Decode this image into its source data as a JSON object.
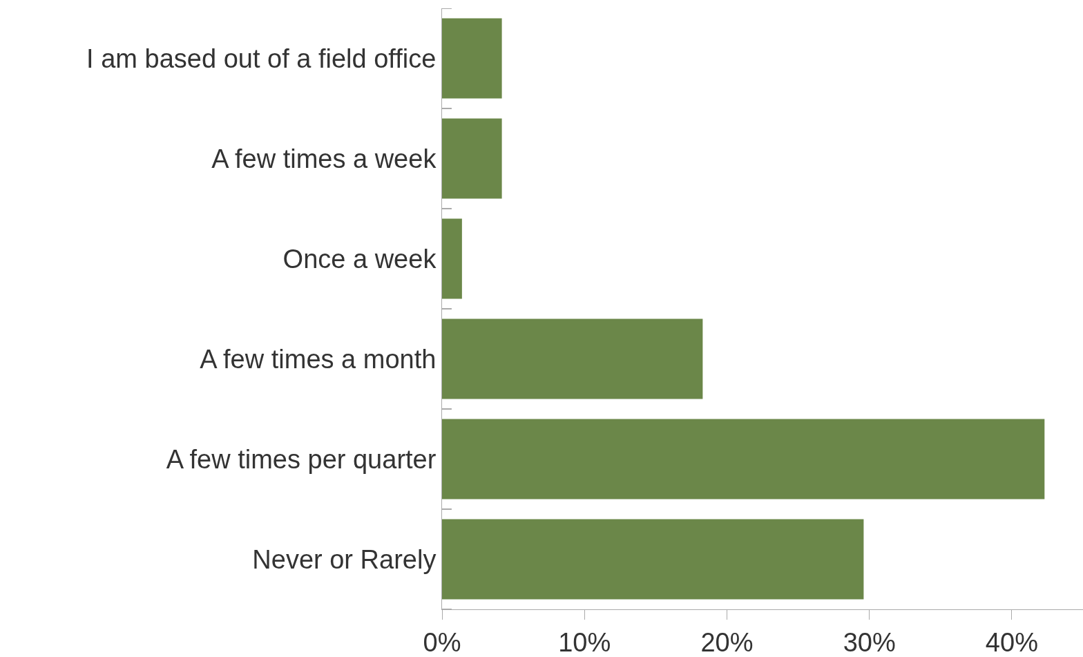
{
  "chart_data": {
    "type": "bar",
    "orientation": "horizontal",
    "categories": [
      "I am based out of a field office",
      "A few times a week",
      "Once a week",
      "A few times a month",
      "A few times per quarter",
      "Never or Rarely"
    ],
    "values": [
      4.2,
      4.2,
      1.4,
      18.3,
      42.3,
      29.6
    ],
    "color": "#6b8749",
    "xlim": [
      0,
      45
    ],
    "xticks": [
      {
        "value": 0,
        "label": "0%"
      },
      {
        "value": 10,
        "label": "10%"
      },
      {
        "value": 20,
        "label": "20%"
      },
      {
        "value": 30,
        "label": "30%"
      },
      {
        "value": 40,
        "label": "40%"
      }
    ],
    "legend": false
  }
}
